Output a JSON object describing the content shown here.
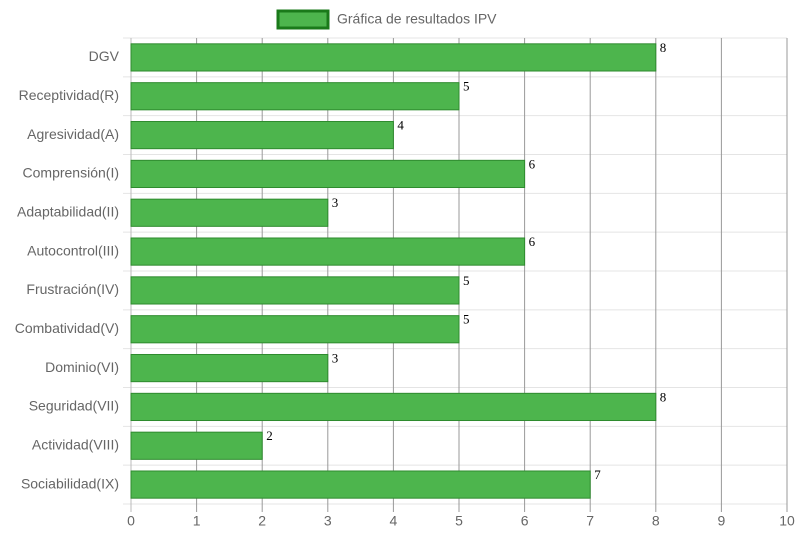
{
  "chart_data": {
    "type": "hbar",
    "categories": [
      "DGV",
      "Receptividad(R)",
      "Agresividad(A)",
      "Comprensión(I)",
      "Adaptabilidad(II)",
      "Autocontrol(III)",
      "Frustración(IV)",
      "Combatividad(V)",
      "Dominio(VI)",
      "Seguridad(VII)",
      "Actividad(VIII)",
      "Sociabilidad(IX)"
    ],
    "series": [
      {
        "name": "Gráfica de resultados IPV",
        "color": "#4db54d",
        "border_color": "#2e8b2e",
        "values": [
          8,
          5,
          4,
          6,
          3,
          6,
          5,
          5,
          3,
          8,
          2,
          7
        ]
      }
    ],
    "xlim": [
      0,
      10
    ],
    "xticks": [
      0,
      1,
      2,
      3,
      4,
      5,
      6,
      7,
      8,
      9,
      10
    ],
    "grid": true,
    "legend_position": "top",
    "data_labels": true
  }
}
